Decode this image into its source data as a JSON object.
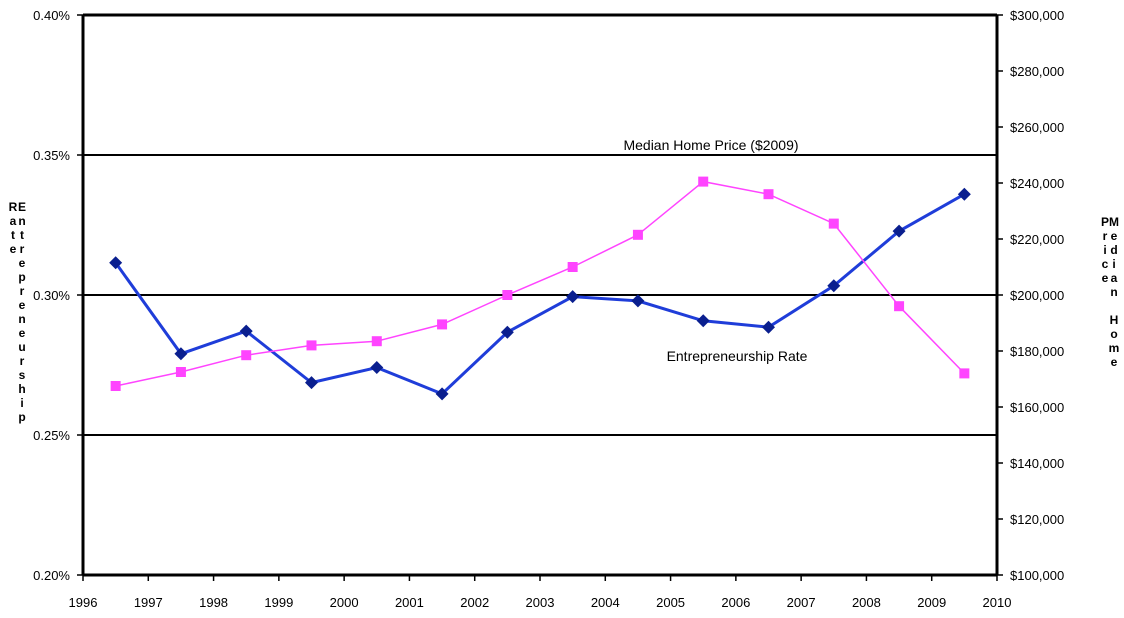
{
  "chart_data": {
    "type": "line",
    "x": [
      1996.5,
      1997.5,
      1998.5,
      1999.5,
      2000.5,
      2001.5,
      2002.5,
      2003.5,
      2004.5,
      2005.5,
      2006.5,
      2007.5,
      2008.5,
      2009.5
    ],
    "xlim": [
      1996,
      2010
    ],
    "x_ticks": [
      "1996",
      "1997",
      "1998",
      "1999",
      "2000",
      "2001",
      "2002",
      "2003",
      "2004",
      "2005",
      "2006",
      "2007",
      "2008",
      "2009",
      "2010"
    ],
    "series": [
      {
        "name": "Entrepreneurship Rate",
        "axis": "left",
        "color": "#1f3dd9",
        "marker_color": "#0a1f8f",
        "marker": "diamond",
        "values": [
          0.3115,
          0.279,
          0.2871,
          0.2687,
          0.2741,
          0.2647,
          0.2867,
          0.2994,
          0.2979,
          0.2908,
          0.2885,
          0.3033,
          0.3228,
          0.336
        ]
      },
      {
        "name": "Median Home Price ($2009)",
        "axis": "right",
        "color": "#ff44ff",
        "marker_color": "#ff44ff",
        "marker": "square",
        "values": [
          167500,
          172500,
          178500,
          182000,
          183500,
          189500,
          200000,
          210000,
          221500,
          240500,
          236000,
          225500,
          196000,
          172000
        ]
      }
    ],
    "y_left": {
      "label": "Entrepreneurship Rate",
      "ylim": [
        0.2,
        0.4
      ],
      "ticks": [
        0.2,
        0.25,
        0.3,
        0.35,
        0.4
      ],
      "tick_labels": [
        "0.20%",
        "0.25%",
        "0.30%",
        "0.35%",
        "0.40%"
      ]
    },
    "y_right": {
      "label": "Median Home Price",
      "ylim": [
        100000,
        300000
      ],
      "ticks": [
        100000,
        120000,
        140000,
        160000,
        180000,
        200000,
        220000,
        240000,
        260000,
        280000,
        300000
      ],
      "tick_labels": [
        "$100,000",
        "$120,000",
        "$140,000",
        "$160,000",
        "$180,000",
        "$200,000",
        "$220,000",
        "$240,000",
        "$260,000",
        "$280,000",
        "$300,000"
      ]
    },
    "gridlines_left": [
      0.25,
      0.3,
      0.35
    ],
    "annotations": [
      {
        "text": "Median Home Price ($2009)",
        "series": 1
      },
      {
        "text": "Entrepreneurship Rate",
        "series": 0
      }
    ],
    "legend": "none"
  }
}
